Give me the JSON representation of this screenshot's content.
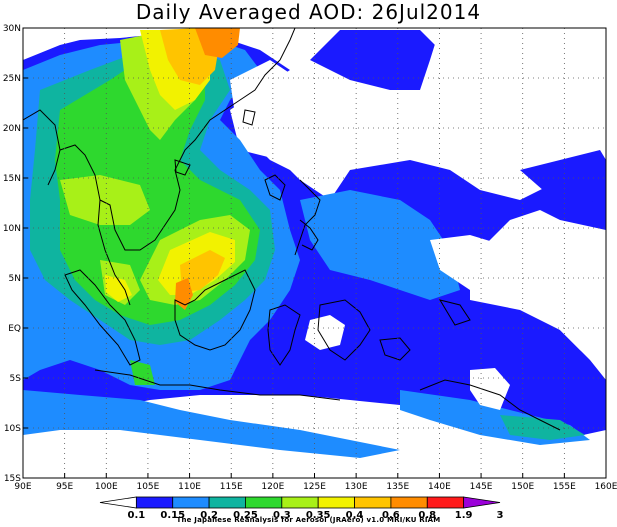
{
  "title": "Daily Averaged AOD: 26Jul2014",
  "credit": "The Japanese Reanalysis for Aerosol (JRAero) v1.0 MRI/KU RIAM",
  "lon_labels": [
    "90E",
    "95E",
    "100E",
    "105E",
    "110E",
    "115E",
    "120E",
    "125E",
    "130E",
    "135E",
    "140E",
    "145E",
    "150E",
    "155E",
    "160E"
  ],
  "lat_labels": [
    "30N",
    "25N",
    "20N",
    "15N",
    "10N",
    "5N",
    "EQ",
    "5S",
    "10S",
    "15S"
  ],
  "colorbar": {
    "labels": [
      "0.1",
      "0.15",
      "0.2",
      "0.25",
      "0.3",
      "0.35",
      "0.4",
      "0.6",
      "0.8",
      "1.9",
      "3"
    ],
    "colors": [
      "#ffffff",
      "#1a1aff",
      "#1e8cff",
      "#0fb4a0",
      "#2ed82e",
      "#a8f018",
      "#f2f200",
      "#ffc400",
      "#ff8c00",
      "#ff1a1a",
      "#9b00d9"
    ]
  },
  "map": {
    "lon_range": [
      90,
      160
    ],
    "lat_range": [
      -15,
      30
    ],
    "grid": "dotted"
  }
}
